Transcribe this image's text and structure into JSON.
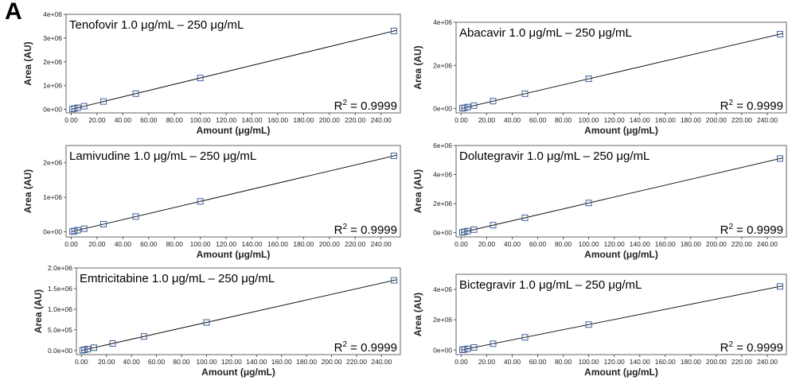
{
  "figure": {
    "panel_label": "A"
  },
  "chart_data": [
    {
      "type": "scatter",
      "title": "Tenofovir 1.0 μg/mL – 250 μg/mL",
      "xlabel": "Amount (μg/mL)",
      "ylabel": "Area (AU)",
      "r2_prefix": "R",
      "r2_sup": "2",
      "r2_text": " = 0.9999",
      "xlim": [
        -4,
        255
      ],
      "ylim": [
        -150000,
        4000000
      ],
      "xticks": [
        "0.00",
        "20.00",
        "40.00",
        "60.00",
        "80.00",
        "100.00",
        "120.00",
        "140.00",
        "160.00",
        "180.00",
        "200.00",
        "220.00",
        "240.00"
      ],
      "yticks": [
        {
          "v": 0,
          "label": "0e+00"
        },
        {
          "v": 1000000,
          "label": "1e+06"
        },
        {
          "v": 2000000,
          "label": "2e+06"
        },
        {
          "v": 3000000,
          "label": "3e+06"
        },
        {
          "v": 4000000,
          "label": "4e+06"
        }
      ],
      "x": [
        1,
        2.5,
        5,
        10,
        25,
        50,
        100,
        250
      ],
      "y": [
        13200,
        33000,
        66000,
        132000,
        330000,
        660000,
        1320000,
        3300000
      ],
      "trendline": {
        "slope": 13200,
        "intercept": 0
      },
      "grid": false,
      "marker": "open-square",
      "colors": {
        "marker": "#3f5f9a",
        "line": "#000000"
      }
    },
    {
      "type": "scatter",
      "title": "Abacavir 1.0 μg/mL – 250 μg/mL",
      "xlabel": "Amount (μg/mL)",
      "ylabel": "Area (AU)",
      "r2_prefix": "R",
      "r2_sup": "2",
      "r2_text": " = 0.9999",
      "xlim": [
        -4,
        255
      ],
      "ylim": [
        -200000,
        4000000
      ],
      "xticks": [
        "0.00",
        "20.00",
        "40.00",
        "60.00",
        "80.00",
        "100.00",
        "120.00",
        "140.00",
        "160.00",
        "180.00",
        "200.00",
        "220.00",
        "240.00"
      ],
      "yticks": [
        {
          "v": 0,
          "label": "0e+00"
        },
        {
          "v": 2000000,
          "label": "2e+06"
        },
        {
          "v": 4000000,
          "label": "4e+06"
        }
      ],
      "x": [
        1,
        2.5,
        5,
        10,
        25,
        50,
        100,
        250
      ],
      "y": [
        13800,
        34500,
        69000,
        138000,
        345000,
        690000,
        1380000,
        3450000
      ],
      "trendline": {
        "slope": 13800,
        "intercept": 0
      },
      "grid": false,
      "marker": "open-square",
      "colors": {
        "marker": "#3f5f9a",
        "line": "#000000"
      }
    },
    {
      "type": "scatter",
      "title": "Lamivudine 1.0 μg/mL – 250 μg/mL",
      "xlabel": "Amount (μg/mL)",
      "ylabel": "Area (AU)",
      "r2_prefix": "R",
      "r2_sup": "2",
      "r2_text": " = 0.9999",
      "xlim": [
        -4,
        255
      ],
      "ylim": [
        -150000,
        2500000
      ],
      "xticks": [
        "0.00",
        "20.00",
        "40.00",
        "60.00",
        "80.00",
        "100.00",
        "120.00",
        "140.00",
        "160.00",
        "180.00",
        "200.00",
        "220.00",
        "240.00"
      ],
      "yticks": [
        {
          "v": 0,
          "label": "0e+00"
        },
        {
          "v": 1000000,
          "label": "1e+06"
        },
        {
          "v": 2000000,
          "label": "2e+06"
        }
      ],
      "x": [
        1,
        2.5,
        5,
        10,
        25,
        50,
        100,
        250
      ],
      "y": [
        8800,
        22000,
        44000,
        88000,
        220000,
        440000,
        880000,
        2200000
      ],
      "trendline": {
        "slope": 8800,
        "intercept": 0
      },
      "grid": false,
      "marker": "open-square",
      "colors": {
        "marker": "#3f5f9a",
        "line": "#000000"
      }
    },
    {
      "type": "scatter",
      "title": "Dolutegravir 1.0 μg/mL – 250 μg/mL",
      "xlabel": "Amount (μg/mL)",
      "ylabel": "Area (AU)",
      "r2_prefix": "R",
      "r2_sup": "2",
      "r2_text": " = 0.9999",
      "xlim": [
        -4,
        255
      ],
      "ylim": [
        -300000,
        6000000
      ],
      "xticks": [
        "0.00",
        "20.00",
        "40.00",
        "60.00",
        "80.00",
        "100.00",
        "120.00",
        "140.00",
        "160.00",
        "180.00",
        "200.00",
        "220.00",
        "240.00"
      ],
      "yticks": [
        {
          "v": 0,
          "label": "0e+00"
        },
        {
          "v": 2000000,
          "label": "2e+06"
        },
        {
          "v": 4000000,
          "label": "4e+06"
        },
        {
          "v": 6000000,
          "label": "6e+06"
        }
      ],
      "x": [
        1,
        2.5,
        5,
        10,
        25,
        50,
        100,
        250
      ],
      "y": [
        20400,
        51000,
        102000,
        204000,
        510000,
        1020000,
        2040000,
        5100000
      ],
      "trendline": {
        "slope": 20400,
        "intercept": 0
      },
      "grid": false,
      "marker": "open-square",
      "colors": {
        "marker": "#3f5f9a",
        "line": "#000000"
      }
    },
    {
      "type": "scatter",
      "title": "Emtricitabine 1.0 μg/mL – 250 μg/mL",
      "xlabel": "Amount (μg/mL)",
      "ylabel": "Area (AU)",
      "r2_prefix": "R",
      "r2_sup": "2",
      "r2_text": " = 0.9999",
      "xlim": [
        -4,
        255
      ],
      "ylim": [
        -100000,
        2000000
      ],
      "xticks": [
        "0.00",
        "20.00",
        "40.00",
        "60.00",
        "80.00",
        "100.00",
        "120.00",
        "140.00",
        "160.00",
        "180.00",
        "200.00",
        "220.00",
        "240.00"
      ],
      "yticks": [
        {
          "v": 0,
          "label": "0.0e+00"
        },
        {
          "v": 500000,
          "label": "5.0e+05"
        },
        {
          "v": 1000000,
          "label": "1.0e+06"
        },
        {
          "v": 1500000,
          "label": "1.5e+06"
        },
        {
          "v": 2000000,
          "label": "2.0e+06"
        }
      ],
      "x": [
        1,
        2.5,
        5,
        10,
        25,
        50,
        100,
        250
      ],
      "y": [
        6800,
        17000,
        34000,
        68000,
        170000,
        340000,
        680000,
        1700000
      ],
      "trendline": {
        "slope": 6800,
        "intercept": 0
      },
      "grid": false,
      "marker": "open-square",
      "colors": {
        "marker": "#3f5f9a",
        "line": "#000000"
      }
    },
    {
      "type": "scatter",
      "title": "Bictegravir 1.0 μg/mL – 250 μg/mL",
      "xlabel": "Amount (μg/mL)",
      "ylabel": "Area (AU)",
      "r2_prefix": "R",
      "r2_sup": "2",
      "r2_text": " = 0.9999",
      "xlim": [
        -4,
        255
      ],
      "ylim": [
        -300000,
        5000000
      ],
      "xticks": [
        "0.00",
        "20.00",
        "40.00",
        "60.00",
        "80.00",
        "100.00",
        "120.00",
        "140.00",
        "160.00",
        "180.00",
        "200.00",
        "220.00",
        "240.00"
      ],
      "yticks": [
        {
          "v": 0,
          "label": "0e+00"
        },
        {
          "v": 2000000,
          "label": "2e+06"
        },
        {
          "v": 4000000,
          "label": "4e+06"
        }
      ],
      "x": [
        1,
        2.5,
        5,
        10,
        25,
        50,
        100,
        250
      ],
      "y": [
        16800,
        42000,
        84000,
        168000,
        420000,
        840000,
        1680000,
        4200000
      ],
      "trendline": {
        "slope": 16800,
        "intercept": 0
      },
      "grid": false,
      "marker": "open-square",
      "colors": {
        "marker": "#3f5f9a",
        "line": "#000000"
      }
    }
  ]
}
